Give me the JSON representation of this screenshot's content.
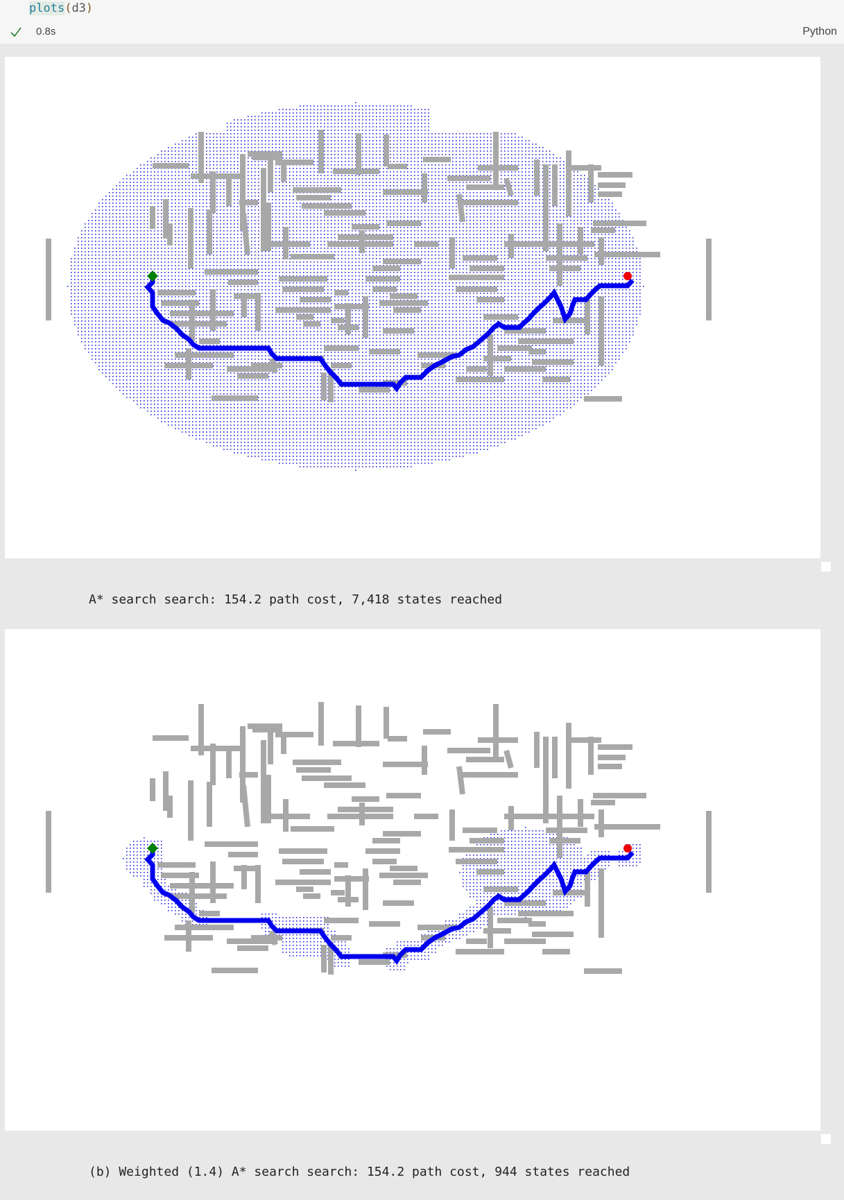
{
  "cell": {
    "code_fn": "plots",
    "code_open": "(",
    "code_arg": "d3",
    "code_close": ")",
    "exec_time": "0.8s",
    "language": "Python",
    "status": "success"
  },
  "outputs": [
    {
      "caption": "A* search search: 154.2 path cost, 7,418 states reached",
      "explored": "wide"
    },
    {
      "caption": "(b) Weighted (1.4) A* search search: 154.2 path cost, 944 states reached",
      "explored": "narrow"
    }
  ],
  "colors": {
    "wall": "#a8a8a8",
    "path": "#0000ee",
    "reached": "#2222dd",
    "start": "#008000",
    "goal": "#ee0000",
    "check": "#2e7d32"
  }
}
